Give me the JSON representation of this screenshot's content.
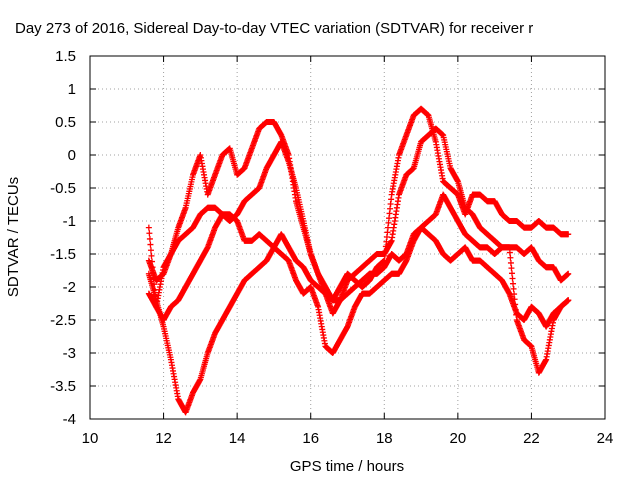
{
  "chart_data": {
    "type": "scatter",
    "title": "Day 273 of 2016, Sidereal Day-to-day VTEC variation (SDTVAR) for receiver r",
    "xlabel": "GPS time / hours",
    "ylabel": "SDTVAR / TECUs",
    "xlim": [
      10,
      24
    ],
    "ylim": [
      -4,
      1.5
    ],
    "x_ticks": [
      "10",
      "12",
      "14",
      "16",
      "18",
      "20",
      "22",
      "24"
    ],
    "y_ticks": [
      "-4",
      "-3.5",
      "-3",
      "-2.5",
      "-2",
      "-1.5",
      "-1",
      "-0.5",
      "0",
      "0.5",
      "1",
      "1.5"
    ],
    "x_tick_values": [
      10,
      12,
      14,
      16,
      18,
      20,
      22,
      24
    ],
    "y_tick_values": [
      -4,
      -3.5,
      -3,
      -2.5,
      -2,
      -1.5,
      -1,
      -0.5,
      0,
      0.5,
      1,
      1.5
    ],
    "grid": true,
    "marker": "+",
    "color": "#ff0000",
    "series": [
      {
        "x": [
          11.6,
          11.8,
          12.0,
          12.2,
          12.4,
          12.6,
          12.8,
          13.0,
          13.2,
          13.4,
          13.6,
          13.8,
          14.0,
          14.2,
          14.4,
          14.6,
          14.8,
          15.0,
          15.2,
          15.4,
          15.6,
          15.8,
          16.0,
          16.2,
          16.4,
          16.6,
          16.8,
          17.0,
          17.2,
          17.4,
          17.6,
          17.8,
          18.0,
          18.2,
          18.4,
          18.6,
          18.8,
          19.0,
          19.2,
          19.4,
          19.6,
          19.8,
          20.0,
          20.2,
          20.4,
          20.6,
          20.8,
          21.0,
          21.2,
          21.4,
          21.6,
          21.8,
          22.0,
          22.2,
          22.4,
          22.6,
          22.8,
          23.0
        ],
        "y": [
          -1.1,
          -2.3,
          -1.7,
          -1.5,
          -1.1,
          -0.8,
          -0.3,
          0.0,
          -0.6,
          -0.3,
          0.0,
          0.1,
          -0.3,
          -0.2,
          0.1,
          0.4,
          0.5,
          0.5,
          0.3,
          0.0,
          -0.7,
          -1.1,
          -1.5,
          -1.8,
          -2.0,
          -2.2,
          -2.0,
          -1.8,
          -1.9,
          -2.0,
          -1.9,
          -1.7,
          -1.6,
          -0.6,
          0.0,
          0.3,
          0.6,
          0.7,
          0.6,
          0.2,
          -0.4,
          -0.5,
          -0.6,
          -0.9,
          -0.6,
          -0.6,
          -0.7,
          -0.7,
          -0.9,
          -1.0,
          -1.0,
          -1.1,
          -1.1,
          -1.0,
          -1.1,
          -1.1,
          -1.2,
          -1.2
        ]
      },
      {
        "x": [
          11.6,
          11.8,
          12.0,
          12.2,
          12.4,
          12.6,
          12.8,
          13.0,
          13.2,
          13.4,
          13.6,
          13.8,
          14.0,
          14.2,
          14.4,
          14.6,
          14.8,
          15.0,
          15.2,
          15.4,
          15.6,
          15.8,
          16.0,
          16.2,
          16.4,
          16.6,
          16.8,
          17.0,
          17.2,
          17.4,
          17.6,
          17.8,
          18.0,
          18.2,
          18.4,
          18.6,
          18.8,
          19.0,
          19.2,
          19.4,
          19.6,
          19.8,
          20.0,
          20.2,
          20.4,
          20.6,
          20.8,
          21.0,
          21.2,
          21.4,
          21.6,
          21.8,
          22.0,
          22.2,
          22.4,
          22.6,
          22.8,
          23.0
        ],
        "y": [
          -1.6,
          -1.9,
          -1.8,
          -1.5,
          -1.3,
          -1.2,
          -1.1,
          -0.9,
          -0.8,
          -0.8,
          -0.9,
          -1.0,
          -0.9,
          -0.7,
          -0.6,
          -0.5,
          -0.2,
          0.0,
          0.2,
          -0.1,
          -0.5,
          -1.0,
          -1.5,
          -1.8,
          -2.1,
          -2.4,
          -2.2,
          -1.9,
          -1.8,
          -1.7,
          -1.6,
          -1.5,
          -1.5,
          -1.3,
          -0.6,
          -0.3,
          -0.2,
          0.2,
          0.3,
          0.4,
          0.3,
          -0.2,
          -0.4,
          -0.8,
          -0.9,
          -1.1,
          -1.2,
          -1.3,
          -1.4,
          -1.4,
          -1.4,
          -1.5,
          -1.4,
          -1.6,
          -1.7,
          -1.7,
          -1.9,
          -1.8
        ]
      },
      {
        "x": [
          11.6,
          11.8,
          12.0,
          12.2,
          12.4,
          12.6,
          12.8,
          13.0,
          13.2,
          13.4,
          13.6,
          13.8,
          14.0,
          14.2,
          14.4,
          14.6,
          14.8,
          15.0,
          15.2,
          15.4,
          15.6,
          15.8,
          16.0,
          16.2,
          16.4,
          16.6,
          16.8,
          17.0,
          17.2,
          17.4,
          17.6,
          17.8,
          18.0,
          18.2,
          18.4,
          18.6,
          18.8,
          19.0,
          19.2,
          19.4,
          19.6,
          19.8,
          20.0,
          20.2,
          20.4,
          20.6,
          20.8,
          21.0,
          21.2,
          21.4,
          21.6,
          21.8,
          22.0,
          22.2,
          22.4,
          22.6,
          22.8,
          23.0
        ],
        "y": [
          -2.1,
          -2.3,
          -2.5,
          -2.3,
          -2.2,
          -2.0,
          -1.8,
          -1.6,
          -1.4,
          -1.1,
          -0.9,
          -0.9,
          -1.0,
          -1.3,
          -1.3,
          -1.2,
          -1.3,
          -1.4,
          -1.5,
          -1.6,
          -1.9,
          -2.1,
          -2.0,
          -2.3,
          -2.9,
          -3.0,
          -2.8,
          -2.6,
          -2.3,
          -2.1,
          -2.1,
          -2.0,
          -1.9,
          -1.8,
          -1.8,
          -1.6,
          -1.3,
          -1.1,
          -1.0,
          -0.9,
          -0.6,
          -0.8,
          -1.0,
          -1.2,
          -1.3,
          -1.4,
          -1.4,
          -1.5,
          -1.4,
          -1.4,
          -2.5,
          -2.8,
          -2.9,
          -3.3,
          -3.1,
          -2.5,
          -2.3,
          -2.2
        ]
      },
      {
        "x": [
          11.6,
          11.8,
          12.0,
          12.2,
          12.4,
          12.6,
          12.8,
          13.0,
          13.2,
          13.4,
          13.6,
          13.8,
          14.0,
          14.2,
          14.4,
          14.6,
          14.8,
          15.0,
          15.2,
          15.4,
          15.6,
          15.8,
          16.0,
          16.2,
          16.4,
          16.6,
          16.8,
          17.0,
          17.2,
          17.4,
          17.6,
          17.8,
          18.0,
          18.2,
          18.4,
          18.6,
          18.8,
          19.0,
          19.2,
          19.4,
          19.6,
          19.8,
          20.0,
          20.2,
          20.4,
          20.6,
          20.8,
          21.0,
          21.2,
          21.4,
          21.6,
          21.8,
          22.0,
          22.2,
          22.4,
          22.6,
          22.8,
          23.0
        ],
        "y": [
          -1.8,
          -2.2,
          -2.6,
          -3.1,
          -3.7,
          -3.9,
          -3.6,
          -3.4,
          -3.0,
          -2.7,
          -2.5,
          -2.3,
          -2.1,
          -1.9,
          -1.8,
          -1.7,
          -1.6,
          -1.4,
          -1.2,
          -1.4,
          -1.6,
          -1.7,
          -1.9,
          -2.0,
          -2.1,
          -2.2,
          -2.2,
          -2.1,
          -2.0,
          -1.9,
          -1.8,
          -1.8,
          -1.7,
          -1.5,
          -1.6,
          -1.5,
          -1.2,
          -1.1,
          -1.2,
          -1.3,
          -1.5,
          -1.6,
          -1.5,
          -1.4,
          -1.6,
          -1.6,
          -1.7,
          -1.8,
          -1.9,
          -2.1,
          -2.4,
          -2.5,
          -2.3,
          -2.4,
          -2.6,
          -2.4,
          -2.3,
          -2.2
        ]
      }
    ]
  }
}
